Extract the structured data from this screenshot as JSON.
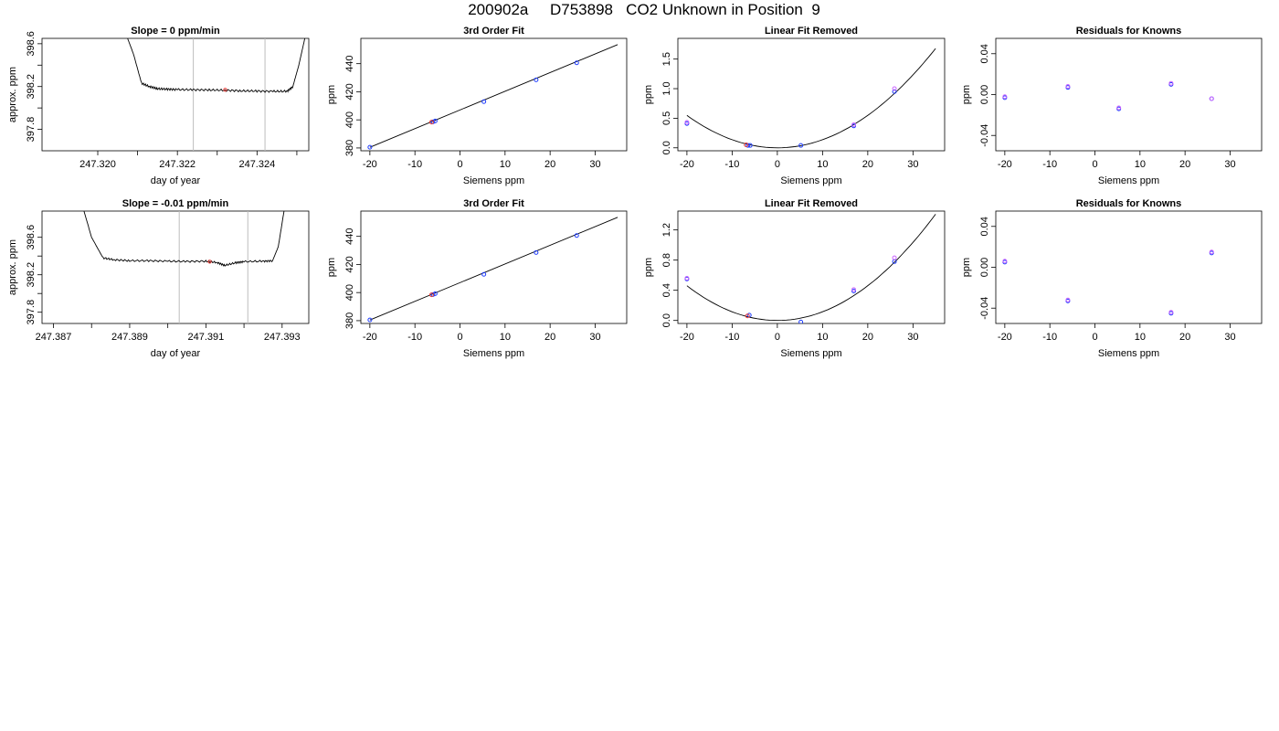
{
  "figure": {
    "title": "200902a     D753898   CO2 Unknown in Position  9"
  },
  "chart_data": [
    {
      "type": "line",
      "title": "Slope =  0  ppm/min",
      "xlabel": "day of year",
      "ylabel": "approx. ppm",
      "xlim": [
        247.3186,
        247.3253
      ],
      "ylim": [
        397.6,
        398.65
      ],
      "xticks": [
        "247.320",
        "247.322",
        "247.324"
      ],
      "xtick_values": [
        247.32,
        247.322,
        247.324
      ],
      "xminor_ticks": [
        247.321,
        247.323,
        247.325
      ],
      "yticks": [
        "397.8",
        "398.2",
        "398.6"
      ],
      "ytick_values": [
        397.8,
        398.2,
        398.6
      ],
      "yminor_ticks": [
        398.0,
        398.4
      ],
      "vlines": [
        247.3224,
        247.3242
      ],
      "series": [
        {
          "color": "#000000",
          "x": [
            247.32075,
            247.3209,
            247.3211,
            247.3213,
            247.3215,
            247.32175,
            247.322,
            247.3224,
            247.3228,
            247.3232,
            247.3236,
            247.324,
            247.3244,
            247.32475,
            247.3249,
            247.32505,
            247.3252
          ],
          "y": [
            398.65,
            398.5,
            398.23,
            398.2,
            398.18,
            398.175,
            398.172,
            398.17,
            398.168,
            398.165,
            398.16,
            398.158,
            398.155,
            398.155,
            398.2,
            398.4,
            398.65
          ]
        }
      ],
      "markers": [
        {
          "color": "#e53935",
          "x": [
            247.3232
          ],
          "y": [
            398.17
          ]
        }
      ]
    },
    {
      "type": "scatter",
      "title": "3rd Order Fit",
      "xlabel": "Siemens ppm",
      "ylabel": "ppm",
      "xlim": [
        -22,
        37
      ],
      "ylim": [
        378,
        458
      ],
      "xticks": [
        "-20",
        "-10",
        "0",
        "10",
        "20",
        "30"
      ],
      "xtick_values": [
        -20,
        -10,
        0,
        10,
        20,
        30
      ],
      "yticks": [
        "380",
        "400",
        "420",
        "440"
      ],
      "ytick_values": [
        380,
        400,
        420,
        440
      ],
      "curve": {
        "x": [
          -20,
          35
        ],
        "y": [
          380.5,
          453.6
        ]
      },
      "series": [
        {
          "color": "#1e3cff",
          "x": [
            -20,
            -6,
            -5.5,
            5.3,
            16.9,
            25.9
          ],
          "y": [
            380.5,
            398.6,
            399.2,
            413.0,
            428.5,
            440.6
          ]
        },
        {
          "color": "#e53935",
          "x": [
            -6.3
          ],
          "y": [
            398.4
          ]
        }
      ]
    },
    {
      "type": "scatter",
      "title": "Linear Fit Removed",
      "xlabel": "Siemens ppm",
      "ylabel": "ppm",
      "xlim": [
        -22,
        37
      ],
      "ylim": [
        -0.05,
        1.85
      ],
      "xticks": [
        "-20",
        "-10",
        "0",
        "10",
        "20",
        "30"
      ],
      "xtick_values": [
        -20,
        -10,
        0,
        10,
        20,
        30
      ],
      "yticks": [
        "0.0",
        "0.5",
        "1.0",
        "1.5"
      ],
      "ytick_values": [
        0,
        0.5,
        1.0,
        1.5
      ],
      "curve": {
        "coef": 0.00137,
        "x": [
          -20,
          35
        ]
      },
      "series": [
        {
          "color": "#1e3cff",
          "x": [
            -20,
            -6.5,
            -6,
            5.2,
            16.9,
            25.9
          ],
          "y": [
            0.41,
            0.04,
            0.04,
            0.04,
            0.37,
            0.95
          ]
        },
        {
          "color": "#cc66ff",
          "x": [
            -20,
            16.9,
            25.9
          ],
          "y": [
            0.43,
            0.39,
            1.0
          ]
        },
        {
          "color": "#e53935",
          "x": [
            -6.9
          ],
          "y": [
            0.05
          ]
        }
      ]
    },
    {
      "type": "scatter",
      "title": "Residuals for Knowns",
      "xlabel": "Siemens ppm",
      "ylabel": "ppm",
      "xlim": [
        -22,
        37
      ],
      "ylim": [
        -0.055,
        0.055
      ],
      "xticks": [
        "-20",
        "-10",
        "0",
        "10",
        "20",
        "30"
      ],
      "xtick_values": [
        -20,
        -10,
        0,
        10,
        20,
        30
      ],
      "yticks": [
        "-0.04",
        "0.00",
        "0.04"
      ],
      "ytick_values": [
        -0.04,
        0,
        0.04
      ],
      "series": [
        {
          "color": "#1e3cff",
          "x": [
            -20,
            -6,
            5.3,
            16.9,
            25.9
          ],
          "y": [
            -0.003,
            0.007,
            -0.014,
            0.01,
            -0.004
          ]
        },
        {
          "color": "#cc66ff",
          "x": [
            -20,
            -6,
            5.3,
            16.9,
            25.9
          ],
          "y": [
            -0.002,
            0.008,
            -0.013,
            0.011,
            -0.004
          ]
        }
      ]
    },
    {
      "type": "line",
      "title": "Slope =  -0.01  ppm/min",
      "xlabel": "day of year",
      "ylabel": "approx. ppm",
      "xlim": [
        247.3867,
        247.3937
      ],
      "ylim": [
        397.68,
        398.88
      ],
      "xticks": [
        "247.387",
        "247.389",
        "247.391",
        "247.393"
      ],
      "xtick_values": [
        247.387,
        247.389,
        247.391,
        247.393
      ],
      "xminor_ticks": [
        247.388,
        247.39,
        247.392
      ],
      "yticks": [
        "397.8",
        "398.2",
        "398.6"
      ],
      "ytick_values": [
        397.8,
        398.2,
        398.6
      ],
      "yminor_ticks": [
        398.0,
        398.4
      ],
      "vlines": [
        247.3903,
        247.3921
      ],
      "series": [
        {
          "color": "#000000",
          "x": [
            247.3878,
            247.388,
            247.3883,
            247.3886,
            247.389,
            247.3895,
            247.39,
            247.3905,
            247.391,
            247.3913,
            247.3915,
            247.3918,
            247.392,
            247.3925,
            247.39275,
            247.3929,
            247.39305
          ],
          "y": [
            398.88,
            398.6,
            398.38,
            398.36,
            398.35,
            398.35,
            398.345,
            398.342,
            398.345,
            398.33,
            398.3,
            398.33,
            398.34,
            398.345,
            398.35,
            398.5,
            398.88
          ]
        }
      ],
      "markers": [
        {
          "color": "#e53935",
          "x": [
            247.3911
          ],
          "y": [
            398.34
          ]
        }
      ]
    },
    {
      "type": "scatter",
      "title": "3rd Order Fit",
      "xlabel": "Siemens ppm",
      "ylabel": "ppm",
      "xlim": [
        -22,
        37
      ],
      "ylim": [
        378,
        458
      ],
      "xticks": [
        "-20",
        "-10",
        "0",
        "10",
        "20",
        "30"
      ],
      "xtick_values": [
        -20,
        -10,
        0,
        10,
        20,
        30
      ],
      "yticks": [
        "380",
        "400",
        "420",
        "440"
      ],
      "ytick_values": [
        380,
        400,
        420,
        440
      ],
      "curve": {
        "x": [
          -20,
          35
        ],
        "y": [
          380.5,
          453.6
        ]
      },
      "series": [
        {
          "color": "#1e3cff",
          "x": [
            -20,
            -6,
            -5.5,
            5.3,
            16.9,
            25.9
          ],
          "y": [
            380.5,
            398.6,
            399.2,
            413.0,
            428.5,
            440.6
          ]
        },
        {
          "color": "#e53935",
          "x": [
            -6.3
          ],
          "y": [
            398.4
          ]
        }
      ]
    },
    {
      "type": "scatter",
      "title": "Linear Fit Removed",
      "xlabel": "Siemens ppm",
      "ylabel": "ppm",
      "xlim": [
        -22,
        37
      ],
      "ylim": [
        -0.04,
        1.45
      ],
      "xticks": [
        "-20",
        "-10",
        "0",
        "10",
        "20",
        "30"
      ],
      "xtick_values": [
        -20,
        -10,
        0,
        10,
        20,
        30
      ],
      "yticks": [
        "0.0",
        "0.4",
        "0.8",
        "1.2"
      ],
      "ytick_values": [
        0,
        0.4,
        0.8,
        1.2
      ],
      "curve": {
        "coef": 0.00115,
        "x": [
          -20,
          35
        ]
      },
      "series": [
        {
          "color": "#1e3cff",
          "x": [
            -20,
            -6.2,
            5.2,
            16.9,
            25.9
          ],
          "y": [
            0.55,
            0.07,
            -0.02,
            0.39,
            0.78
          ]
        },
        {
          "color": "#cc66ff",
          "x": [
            -20,
            16.9,
            25.9
          ],
          "y": [
            0.56,
            0.41,
            0.83
          ]
        },
        {
          "color": "#e53935",
          "x": [
            -6.6
          ],
          "y": [
            0.06
          ]
        }
      ]
    },
    {
      "type": "scatter",
      "title": "Residuals for Knowns",
      "xlabel": "Siemens ppm",
      "ylabel": "ppm",
      "xlim": [
        -22,
        37
      ],
      "ylim": [
        -0.055,
        0.055
      ],
      "xticks": [
        "-20",
        "-10",
        "0",
        "10",
        "20",
        "30"
      ],
      "xtick_values": [
        -20,
        -10,
        0,
        10,
        20,
        30
      ],
      "yticks": [
        "-0.04",
        "0.00",
        "0.04"
      ],
      "ytick_values": [
        -0.04,
        0,
        0.04
      ],
      "series": [
        {
          "color": "#1e3cff",
          "x": [
            -20,
            -6,
            16.9,
            25.9
          ],
          "y": [
            0.005,
            -0.033,
            -0.045,
            0.014
          ]
        },
        {
          "color": "#cc66ff",
          "x": [
            -20,
            -6,
            16.9,
            25.9
          ],
          "y": [
            0.006,
            -0.032,
            -0.044,
            0.015
          ]
        }
      ]
    }
  ]
}
